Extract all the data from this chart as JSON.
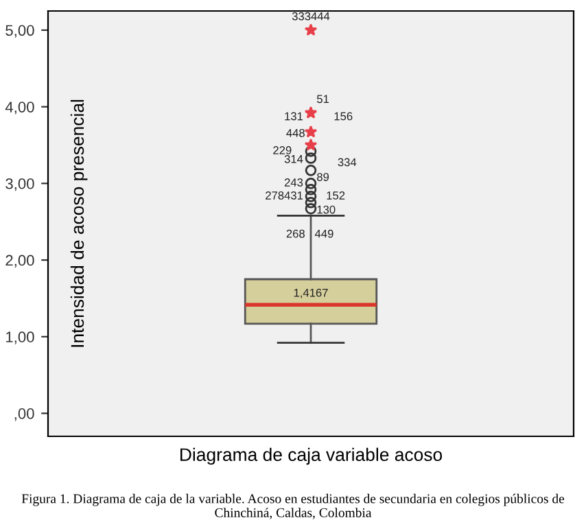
{
  "chart_data": {
    "type": "box",
    "ylabel": "Intensidad de acoso presencial",
    "xlabel": "Diagrama de caja variable acoso",
    "categories": [
      null
    ],
    "boxes": [
      {
        "low": 0.92,
        "q1": 1.17,
        "median": 1.4167,
        "q3": 1.75,
        "high": 2.58,
        "outliers": [
          2.67,
          2.75,
          2.83,
          2.92,
          3.0,
          3.17,
          3.33,
          3.42,
          3.5,
          3.67,
          3.92,
          5.0
        ]
      }
    ],
    "colors": [
      "#d5cf9c"
    ],
    "ylim": [
      -0.3,
      5.25
    ],
    "yticks": [
      {
        "value": 0,
        "label": ",00"
      },
      {
        "value": 1,
        "label": "1,00"
      },
      {
        "value": 2,
        "label": "2,00"
      },
      {
        "value": 3,
        "label": "3,00"
      },
      {
        "value": 4,
        "label": "4,00"
      },
      {
        "value": 5,
        "label": "5,00"
      }
    ],
    "grid": false,
    "annotations": [
      {
        "text": "1,4167",
        "y": 1.4167
      },
      "333444",
      "51",
      "131",
      "156",
      "448",
      "229",
      "314",
      "89",
      "334",
      "243",
      "278",
      "431",
      "152",
      "130",
      "268",
      "449",
      "Figura 1. Diagrama de caja de la variable. Acoso en estudiantes de secundaria en colegios públicos de Chinchiná, Caldas, Colombia"
    ]
  }
}
